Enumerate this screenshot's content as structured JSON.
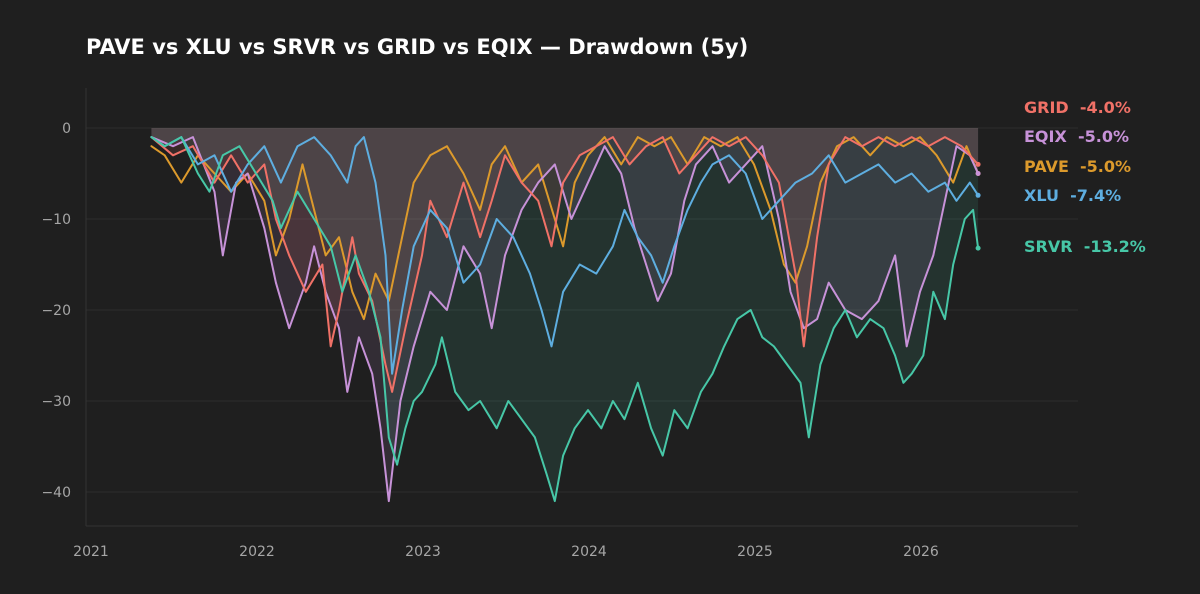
{
  "chart_data": {
    "type": "line",
    "title": "PAVE vs XLU vs SRVR vs GRID vs EQIX — Drawdown (5y)",
    "xlabel": "",
    "ylabel": "",
    "x_ticks": [
      "2021",
      "2022",
      "2023",
      "2024",
      "2025",
      "2026"
    ],
    "y_ticks": [
      "0",
      "−10",
      "−20",
      "−30",
      "−40"
    ],
    "ylim": [
      -43.5,
      4.5
    ],
    "xlim": [
      2021.0,
      2027.0
    ],
    "grid": true,
    "legend_position": "right",
    "series": [
      {
        "name": "GRID",
        "label": "GRID  -4.0%",
        "final": -4.0,
        "color": "#f07167",
        "points": [
          [
            2021.37,
            -1
          ],
          [
            2021.5,
            -3
          ],
          [
            2021.62,
            -2
          ],
          [
            2021.75,
            -6
          ],
          [
            2021.85,
            -3
          ],
          [
            2021.95,
            -6
          ],
          [
            2022.05,
            -4
          ],
          [
            2022.12,
            -10
          ],
          [
            2022.2,
            -14
          ],
          [
            2022.3,
            -18
          ],
          [
            2022.4,
            -15
          ],
          [
            2022.45,
            -24
          ],
          [
            2022.5,
            -20
          ],
          [
            2022.58,
            -12
          ],
          [
            2022.62,
            -16
          ],
          [
            2022.7,
            -19
          ],
          [
            2022.78,
            -26
          ],
          [
            2022.82,
            -29
          ],
          [
            2022.9,
            -22
          ],
          [
            2023.0,
            -14
          ],
          [
            2023.05,
            -8
          ],
          [
            2023.15,
            -12
          ],
          [
            2023.25,
            -6
          ],
          [
            2023.35,
            -12
          ],
          [
            2023.42,
            -8
          ],
          [
            2023.5,
            -3
          ],
          [
            2023.6,
            -6
          ],
          [
            2023.7,
            -8
          ],
          [
            2023.78,
            -13
          ],
          [
            2023.85,
            -6
          ],
          [
            2023.95,
            -3
          ],
          [
            2024.05,
            -2
          ],
          [
            2024.15,
            -1
          ],
          [
            2024.25,
            -4
          ],
          [
            2024.35,
            -2
          ],
          [
            2024.45,
            -1
          ],
          [
            2024.55,
            -5
          ],
          [
            2024.65,
            -3
          ],
          [
            2024.75,
            -1
          ],
          [
            2024.85,
            -2
          ],
          [
            2024.95,
            -1
          ],
          [
            2025.05,
            -3
          ],
          [
            2025.15,
            -6
          ],
          [
            2025.25,
            -16
          ],
          [
            2025.3,
            -24
          ],
          [
            2025.38,
            -12
          ],
          [
            2025.45,
            -4
          ],
          [
            2025.55,
            -1
          ],
          [
            2025.65,
            -2
          ],
          [
            2025.75,
            -1
          ],
          [
            2025.85,
            -2
          ],
          [
            2025.95,
            -1
          ],
          [
            2026.05,
            -2
          ],
          [
            2026.15,
            -1
          ],
          [
            2026.25,
            -2
          ],
          [
            2026.35,
            -4.0
          ]
        ]
      },
      {
        "name": "EQIX",
        "label": "EQIX  -5.0%",
        "final": -5.0,
        "color": "#c792d8",
        "points": [
          [
            2021.37,
            -1
          ],
          [
            2021.5,
            -2
          ],
          [
            2021.62,
            -1
          ],
          [
            2021.75,
            -7
          ],
          [
            2021.8,
            -14
          ],
          [
            2021.88,
            -6
          ],
          [
            2021.95,
            -5
          ],
          [
            2022.05,
            -11
          ],
          [
            2022.12,
            -17
          ],
          [
            2022.2,
            -22
          ],
          [
            2022.3,
            -17
          ],
          [
            2022.35,
            -13
          ],
          [
            2022.42,
            -18
          ],
          [
            2022.5,
            -22
          ],
          [
            2022.55,
            -29
          ],
          [
            2022.62,
            -23
          ],
          [
            2022.7,
            -27
          ],
          [
            2022.75,
            -33
          ],
          [
            2022.8,
            -41
          ],
          [
            2022.87,
            -30
          ],
          [
            2022.95,
            -24
          ],
          [
            2023.05,
            -18
          ],
          [
            2023.15,
            -20
          ],
          [
            2023.25,
            -13
          ],
          [
            2023.35,
            -16
          ],
          [
            2023.42,
            -22
          ],
          [
            2023.5,
            -14
          ],
          [
            2023.6,
            -9
          ],
          [
            2023.7,
            -6
          ],
          [
            2023.8,
            -4
          ],
          [
            2023.9,
            -10
          ],
          [
            2024.0,
            -6
          ],
          [
            2024.1,
            -2
          ],
          [
            2024.2,
            -5
          ],
          [
            2024.28,
            -11
          ],
          [
            2024.35,
            -15
          ],
          [
            2024.42,
            -19
          ],
          [
            2024.5,
            -16
          ],
          [
            2024.58,
            -8
          ],
          [
            2024.65,
            -4
          ],
          [
            2024.75,
            -2
          ],
          [
            2024.85,
            -6
          ],
          [
            2024.95,
            -4
          ],
          [
            2025.05,
            -2
          ],
          [
            2025.15,
            -10
          ],
          [
            2025.22,
            -18
          ],
          [
            2025.3,
            -22
          ],
          [
            2025.38,
            -21
          ],
          [
            2025.45,
            -17
          ],
          [
            2025.55,
            -20
          ],
          [
            2025.65,
            -21
          ],
          [
            2025.75,
            -19
          ],
          [
            2025.85,
            -14
          ],
          [
            2025.92,
            -24
          ],
          [
            2026.0,
            -18
          ],
          [
            2026.08,
            -14
          ],
          [
            2026.15,
            -8
          ],
          [
            2026.22,
            -2
          ],
          [
            2026.3,
            -3
          ],
          [
            2026.35,
            -5.0
          ]
        ]
      },
      {
        "name": "PAVE",
        "label": "PAVE  -5.0%",
        "final": -5.0,
        "color": "#dc9a2c",
        "points": [
          [
            2021.37,
            -2
          ],
          [
            2021.45,
            -3
          ],
          [
            2021.55,
            -6
          ],
          [
            2021.65,
            -3
          ],
          [
            2021.75,
            -5
          ],
          [
            2021.85,
            -7
          ],
          [
            2021.95,
            -5
          ],
          [
            2022.05,
            -8
          ],
          [
            2022.12,
            -14
          ],
          [
            2022.2,
            -10
          ],
          [
            2022.28,
            -4
          ],
          [
            2022.35,
            -9
          ],
          [
            2022.42,
            -14
          ],
          [
            2022.5,
            -12
          ],
          [
            2022.58,
            -18
          ],
          [
            2022.65,
            -21
          ],
          [
            2022.72,
            -16
          ],
          [
            2022.8,
            -19
          ],
          [
            2022.88,
            -12
          ],
          [
            2022.95,
            -6
          ],
          [
            2023.05,
            -3
          ],
          [
            2023.15,
            -2
          ],
          [
            2023.25,
            -5
          ],
          [
            2023.35,
            -9
          ],
          [
            2023.42,
            -4
          ],
          [
            2023.5,
            -2
          ],
          [
            2023.6,
            -6
          ],
          [
            2023.7,
            -4
          ],
          [
            2023.8,
            -10
          ],
          [
            2023.85,
            -13
          ],
          [
            2023.92,
            -6
          ],
          [
            2024.0,
            -3
          ],
          [
            2024.1,
            -1
          ],
          [
            2024.2,
            -4
          ],
          [
            2024.3,
            -1
          ],
          [
            2024.4,
            -2
          ],
          [
            2024.5,
            -1
          ],
          [
            2024.6,
            -4
          ],
          [
            2024.7,
            -1
          ],
          [
            2024.8,
            -2
          ],
          [
            2024.9,
            -1
          ],
          [
            2025.0,
            -4
          ],
          [
            2025.1,
            -9
          ],
          [
            2025.18,
            -15
          ],
          [
            2025.25,
            -17
          ],
          [
            2025.32,
            -13
          ],
          [
            2025.4,
            -6
          ],
          [
            2025.5,
            -2
          ],
          [
            2025.6,
            -1
          ],
          [
            2025.7,
            -3
          ],
          [
            2025.8,
            -1
          ],
          [
            2025.9,
            -2
          ],
          [
            2026.0,
            -1
          ],
          [
            2026.1,
            -3
          ],
          [
            2026.2,
            -6
          ],
          [
            2026.28,
            -2
          ],
          [
            2026.35,
            -5.0
          ]
        ]
      },
      {
        "name": "XLU",
        "label": "XLU  -7.4%",
        "final": -7.4,
        "color": "#5eaee0",
        "points": [
          [
            2021.37,
            -1
          ],
          [
            2021.45,
            -2
          ],
          [
            2021.55,
            -1
          ],
          [
            2021.65,
            -4
          ],
          [
            2021.75,
            -3
          ],
          [
            2021.85,
            -7
          ],
          [
            2021.95,
            -4
          ],
          [
            2022.05,
            -2
          ],
          [
            2022.15,
            -6
          ],
          [
            2022.25,
            -2
          ],
          [
            2022.35,
            -1
          ],
          [
            2022.45,
            -3
          ],
          [
            2022.55,
            -6
          ],
          [
            2022.6,
            -2
          ],
          [
            2022.65,
            -1
          ],
          [
            2022.72,
            -6
          ],
          [
            2022.78,
            -14
          ],
          [
            2022.82,
            -27
          ],
          [
            2022.88,
            -20
          ],
          [
            2022.95,
            -13
          ],
          [
            2023.05,
            -9
          ],
          [
            2023.15,
            -11
          ],
          [
            2023.25,
            -17
          ],
          [
            2023.35,
            -15
          ],
          [
            2023.45,
            -10
          ],
          [
            2023.55,
            -12
          ],
          [
            2023.65,
            -16
          ],
          [
            2023.72,
            -20
          ],
          [
            2023.78,
            -24
          ],
          [
            2023.85,
            -18
          ],
          [
            2023.95,
            -15
          ],
          [
            2024.05,
            -16
          ],
          [
            2024.15,
            -13
          ],
          [
            2024.22,
            -9
          ],
          [
            2024.3,
            -12
          ],
          [
            2024.38,
            -14
          ],
          [
            2024.45,
            -17
          ],
          [
            2024.52,
            -13
          ],
          [
            2024.6,
            -9
          ],
          [
            2024.68,
            -6
          ],
          [
            2024.75,
            -4
          ],
          [
            2024.85,
            -3
          ],
          [
            2024.95,
            -5
          ],
          [
            2025.05,
            -10
          ],
          [
            2025.15,
            -8
          ],
          [
            2025.25,
            -6
          ],
          [
            2025.35,
            -5
          ],
          [
            2025.45,
            -3
          ],
          [
            2025.55,
            -6
          ],
          [
            2025.65,
            -5
          ],
          [
            2025.75,
            -4
          ],
          [
            2025.85,
            -6
          ],
          [
            2025.95,
            -5
          ],
          [
            2026.05,
            -7
          ],
          [
            2026.15,
            -6
          ],
          [
            2026.22,
            -8
          ],
          [
            2026.3,
            -6
          ],
          [
            2026.35,
            -7.4
          ]
        ]
      },
      {
        "name": "SRVR",
        "label": "SRVR  -13.2%",
        "final": -13.2,
        "color": "#47c7a7",
        "points": [
          [
            2021.37,
            -1
          ],
          [
            2021.45,
            -2
          ],
          [
            2021.55,
            -1
          ],
          [
            2021.65,
            -5
          ],
          [
            2021.72,
            -7
          ],
          [
            2021.8,
            -3
          ],
          [
            2021.9,
            -2
          ],
          [
            2022.0,
            -5
          ],
          [
            2022.1,
            -8
          ],
          [
            2022.15,
            -11
          ],
          [
            2022.25,
            -7
          ],
          [
            2022.35,
            -10
          ],
          [
            2022.45,
            -13
          ],
          [
            2022.52,
            -18
          ],
          [
            2022.6,
            -14
          ],
          [
            2022.68,
            -18
          ],
          [
            2022.75,
            -23
          ],
          [
            2022.8,
            -34
          ],
          [
            2022.85,
            -37
          ],
          [
            2022.9,
            -33
          ],
          [
            2022.95,
            -30
          ],
          [
            2023.0,
            -29
          ],
          [
            2023.08,
            -26
          ],
          [
            2023.12,
            -23
          ],
          [
            2023.2,
            -29
          ],
          [
            2023.28,
            -31
          ],
          [
            2023.35,
            -30
          ],
          [
            2023.45,
            -33
          ],
          [
            2023.52,
            -30
          ],
          [
            2023.6,
            -32
          ],
          [
            2023.68,
            -34
          ],
          [
            2023.75,
            -38
          ],
          [
            2023.8,
            -41
          ],
          [
            2023.85,
            -36
          ],
          [
            2023.92,
            -33
          ],
          [
            2024.0,
            -31
          ],
          [
            2024.08,
            -33
          ],
          [
            2024.15,
            -30
          ],
          [
            2024.22,
            -32
          ],
          [
            2024.3,
            -28
          ],
          [
            2024.38,
            -33
          ],
          [
            2024.45,
            -36
          ],
          [
            2024.52,
            -31
          ],
          [
            2024.6,
            -33
          ],
          [
            2024.68,
            -29
          ],
          [
            2024.75,
            -27
          ],
          [
            2024.82,
            -24
          ],
          [
            2024.9,
            -21
          ],
          [
            2024.98,
            -20
          ],
          [
            2025.05,
            -23
          ],
          [
            2025.12,
            -24
          ],
          [
            2025.2,
            -26
          ],
          [
            2025.28,
            -28
          ],
          [
            2025.33,
            -34
          ],
          [
            2025.4,
            -26
          ],
          [
            2025.48,
            -22
          ],
          [
            2025.55,
            -20
          ],
          [
            2025.62,
            -23
          ],
          [
            2025.7,
            -21
          ],
          [
            2025.78,
            -22
          ],
          [
            2025.85,
            -25
          ],
          [
            2025.9,
            -28
          ],
          [
            2025.95,
            -27
          ],
          [
            2026.02,
            -25
          ],
          [
            2026.08,
            -18
          ],
          [
            2026.15,
            -21
          ],
          [
            2026.2,
            -15
          ],
          [
            2026.27,
            -10
          ],
          [
            2026.32,
            -9
          ],
          [
            2026.35,
            -13.2
          ]
        ]
      }
    ]
  }
}
